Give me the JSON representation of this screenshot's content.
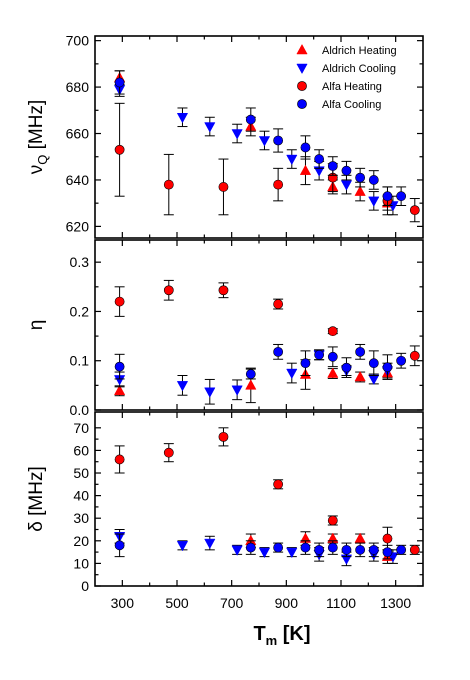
{
  "colors": {
    "heating": "#ff0000",
    "cooling": "#0000ff",
    "marker_edge": "#000000"
  },
  "chart_data": {
    "type": "scatter",
    "xlabel_main": "T",
    "xlabel_sub": "m",
    "xlabel_unit": " [K]",
    "xlim": [
      200,
      1400
    ],
    "xticks": [
      300,
      500,
      700,
      900,
      1100,
      1300
    ],
    "xtick_labels": [
      "300",
      "500",
      "700",
      "900",
      "1100",
      "1300"
    ],
    "legend": {
      "placement": "top-right of top panel",
      "entries": [
        {
          "label": "Aldrich Heating",
          "marker": "triangle-up",
          "color": "#ff0000"
        },
        {
          "label": "Aldrich Cooling",
          "marker": "triangle-down",
          "color": "#0000ff"
        },
        {
          "label": "Alfa Heating",
          "marker": "circle",
          "color": "#ff0000"
        },
        {
          "label": "Alfa Cooling",
          "marker": "circle",
          "color": "#0000ff"
        }
      ]
    },
    "panels": [
      {
        "id": "nuQ",
        "ylabel_main": "ν",
        "ylabel_sub": "Q",
        "ylabel_unit": " [MHz]",
        "ylim": [
          615,
          702
        ],
        "yticks": [
          620,
          640,
          660,
          680,
          700
        ],
        "ytick_labels": [
          "620",
          "640",
          "660",
          "680",
          "700"
        ],
        "series": [
          {
            "name": "Aldrich Heating",
            "points": [
              [
                290,
                684,
                3
              ],
              [
                770,
                663,
                4
              ],
              [
                970,
                644,
                6
              ],
              [
                1070,
                637,
                3
              ],
              [
                1170,
                635,
                4
              ],
              [
                1270,
                630,
                3
              ]
            ]
          },
          {
            "name": "Aldrich Cooling",
            "points": [
              [
                290,
                679,
                3
              ],
              [
                520,
                667,
                4
              ],
              [
                620,
                663,
                4
              ],
              [
                720,
                660,
                4
              ],
              [
                820,
                657,
                4
              ],
              [
                920,
                649,
                4
              ],
              [
                1020,
                644,
                4
              ],
              [
                1120,
                638,
                4
              ],
              [
                1220,
                631,
                4
              ],
              [
                1290,
                629,
                4
              ]
            ]
          },
          {
            "name": "Alfa Heating",
            "points": [
              [
                290,
                653,
                20
              ],
              [
                470,
                638,
                13
              ],
              [
                670,
                637,
                12
              ],
              [
                870,
                638,
                7
              ],
              [
                1070,
                641,
                6
              ],
              [
                1270,
                631,
                6
              ],
              [
                1370,
                627,
                5
              ]
            ]
          },
          {
            "name": "Alfa Cooling",
            "points": [
              [
                290,
                682,
                5
              ],
              [
                770,
                666,
                5
              ],
              [
                870,
                657,
                5
              ],
              [
                970,
                654,
                5
              ],
              [
                1020,
                649,
                4
              ],
              [
                1070,
                646,
                4
              ],
              [
                1120,
                644,
                4
              ],
              [
                1170,
                641,
                4
              ],
              [
                1220,
                640,
                4
              ],
              [
                1270,
                633,
                4
              ],
              [
                1320,
                633,
                4
              ]
            ]
          }
        ]
      },
      {
        "id": "eta",
        "ylabel_main": "η",
        "ylabel_sub": "",
        "ylabel_unit": "",
        "ylim": [
          0,
          0.345
        ],
        "yticks": [
          0.0,
          0.1,
          0.2,
          0.3
        ],
        "ytick_labels": [
          "0.0",
          "0.1",
          "0.2",
          "0.3"
        ],
        "series": [
          {
            "name": "Aldrich Heating",
            "points": [
              [
                290,
                0.039,
                0.01
              ],
              [
                770,
                0.05,
                0.035
              ],
              [
                970,
                0.072,
                0.03
              ],
              [
                1070,
                0.074,
                0.01
              ],
              [
                1170,
                0.067,
                0.01
              ],
              [
                1270,
                0.075,
                0.01
              ]
            ]
          },
          {
            "name": "Aldrich Cooling",
            "points": [
              [
                290,
                0.062,
                0.015
              ],
              [
                520,
                0.05,
                0.02
              ],
              [
                620,
                0.037,
                0.025
              ],
              [
                720,
                0.041,
                0.02
              ],
              [
                920,
                0.075,
                0.02
              ],
              [
                1020,
                0.112,
                0.01
              ],
              [
                1120,
                0.08,
                0.01
              ],
              [
                1220,
                0.063,
                0.01
              ],
              [
                1270,
                0.08,
                0.015
              ]
            ]
          },
          {
            "name": "Alfa Heating",
            "points": [
              [
                290,
                0.22,
                0.03
              ],
              [
                470,
                0.243,
                0.02
              ],
              [
                670,
                0.243,
                0.015
              ],
              [
                870,
                0.215,
                0.01
              ],
              [
                1070,
                0.16,
                0.005
              ],
              [
                1370,
                0.11,
                0.02
              ]
            ]
          },
          {
            "name": "Alfa Cooling",
            "points": [
              [
                290,
                0.088,
                0.025
              ],
              [
                770,
                0.073,
                0.01
              ],
              [
                870,
                0.118,
                0.015
              ],
              [
                970,
                0.095,
                0.025
              ],
              [
                1020,
                0.112,
                0.01
              ],
              [
                1070,
                0.108,
                0.02
              ],
              [
                1120,
                0.086,
                0.02
              ],
              [
                1170,
                0.118,
                0.015
              ],
              [
                1220,
                0.095,
                0.025
              ],
              [
                1270,
                0.087,
                0.025
              ],
              [
                1320,
                0.1,
                0.015
              ]
            ]
          }
        ]
      },
      {
        "id": "delta",
        "ylabel_main": "δ",
        "ylabel_sub": "",
        "ylabel_unit": " [MHz]",
        "ylim": [
          0,
          77
        ],
        "yticks": [
          0,
          10,
          20,
          30,
          40,
          50,
          60,
          70
        ],
        "ytick_labels": [
          "0",
          "10",
          "20",
          "30",
          "40",
          "50",
          "60",
          "70"
        ],
        "series": [
          {
            "name": "Aldrich Heating",
            "points": [
              [
                770,
                20,
                3
              ],
              [
                970,
                21,
                3
              ],
              [
                1070,
                21,
                2
              ],
              [
                1170,
                21,
                2
              ],
              [
                1270,
                13,
                3
              ]
            ]
          },
          {
            "name": "Aldrich Cooling",
            "points": [
              [
                290,
                22,
                3
              ],
              [
                520,
                18,
                2
              ],
              [
                620,
                19,
                3
              ],
              [
                720,
                16,
                2
              ],
              [
                820,
                15,
                2
              ],
              [
                920,
                15,
                2
              ],
              [
                1020,
                14,
                3
              ],
              [
                1120,
                12,
                3
              ],
              [
                1220,
                14,
                3
              ],
              [
                1290,
                13,
                3
              ]
            ]
          },
          {
            "name": "Alfa Heating",
            "points": [
              [
                290,
                56,
                6
              ],
              [
                470,
                59,
                4
              ],
              [
                670,
                66,
                4
              ],
              [
                870,
                45,
                2
              ],
              [
                1070,
                29,
                2
              ],
              [
                1270,
                21,
                5
              ],
              [
                1370,
                16,
                2
              ]
            ]
          },
          {
            "name": "Alfa Cooling",
            "points": [
              [
                290,
                18,
                5
              ],
              [
                770,
                17,
                3
              ],
              [
                870,
                17,
                2
              ],
              [
                970,
                17,
                3
              ],
              [
                1020,
                16,
                3
              ],
              [
                1070,
                17,
                3
              ],
              [
                1120,
                16,
                3
              ],
              [
                1170,
                16,
                3
              ],
              [
                1220,
                16,
                3
              ],
              [
                1270,
                15,
                3
              ],
              [
                1320,
                16,
                2
              ]
            ]
          }
        ]
      }
    ]
  }
}
